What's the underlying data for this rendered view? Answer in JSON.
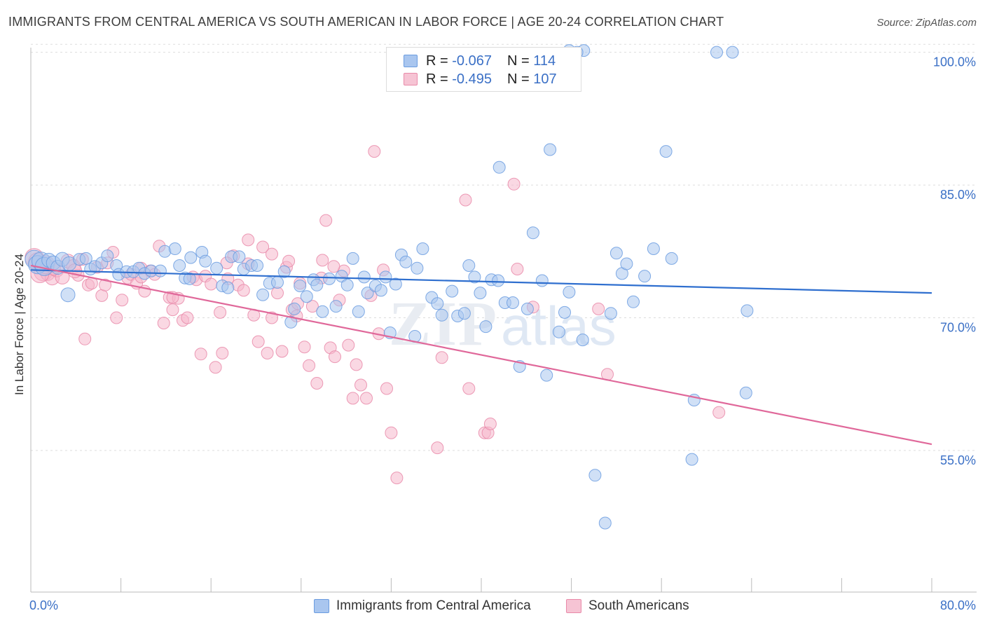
{
  "title": "IMMIGRANTS FROM CENTRAL AMERICA VS SOUTH AMERICAN IN LABOR FORCE | AGE 20-24 CORRELATION CHART",
  "source": "Source: ZipAtlas.com",
  "watermark": {
    "zip": "ZIP",
    "atlas": "atlas"
  },
  "legend": {
    "series1": {
      "r_label": "R =",
      "r_value": "-0.067",
      "n_label": "N =",
      "n_value": "114"
    },
    "series2": {
      "r_label": "R =",
      "r_value": "-0.495",
      "n_label": "N =",
      "n_value": "107"
    }
  },
  "colors": {
    "blue_fill": "#a9c6ef",
    "blue_stroke": "#6b9ce0",
    "blue_line": "#2f6fcf",
    "pink_fill": "#f6b8cc",
    "pink_stroke": "#e98aa9",
    "pink_line": "#e0689a",
    "tick_text": "#3b70c6",
    "grid": "#dddddd"
  },
  "chart_data": {
    "type": "scatter",
    "title": "IMMIGRANTS FROM CENTRAL AMERICA VS SOUTH AMERICAN IN LABOR FORCE | AGE 20-24 CORRELATION CHART",
    "xlabel": "",
    "ylabel": "In Labor Force | Age 20-24",
    "xlim": [
      0,
      80
    ],
    "ylim": [
      39,
      101
    ],
    "x_tick_labels": [
      "0.0%",
      "80.0%"
    ],
    "y_ticks": [
      55,
      70,
      85,
      100
    ],
    "y_tick_labels": [
      "55.0%",
      "70.0%",
      "85.0%",
      "100.0%"
    ],
    "series": [
      {
        "name": "Immigrants from Central America",
        "color": "#6b9ce0",
        "trend": {
          "x": [
            0,
            80
          ],
          "y": [
            75.4,
            72.8
          ]
        },
        "points": [
          [
            0.3,
            76.6
          ],
          [
            0.6,
            76.0
          ],
          [
            0.9,
            76.4
          ],
          [
            1.2,
            75.8
          ],
          [
            1.6,
            76.5
          ],
          [
            2.0,
            76.2
          ],
          [
            2.4,
            75.7
          ],
          [
            2.8,
            76.6
          ],
          [
            3.4,
            76.1
          ],
          [
            3.3,
            72.6
          ],
          [
            4.3,
            76.6
          ],
          [
            4.9,
            76.7
          ],
          [
            5.3,
            75.5
          ],
          [
            5.7,
            75.8
          ],
          [
            6.3,
            76.2
          ],
          [
            6.8,
            77.0
          ],
          [
            7.6,
            75.9
          ],
          [
            7.8,
            74.9
          ],
          [
            8.5,
            75.2
          ],
          [
            9.1,
            75.2
          ],
          [
            9.6,
            75.6
          ],
          [
            10.1,
            75.0
          ],
          [
            10.7,
            75.3
          ],
          [
            11.5,
            75.3
          ],
          [
            11.9,
            77.5
          ],
          [
            12.8,
            77.8
          ],
          [
            13.2,
            75.9
          ],
          [
            13.7,
            74.5
          ],
          [
            14.2,
            76.8
          ],
          [
            14.1,
            74.4
          ],
          [
            15.2,
            77.4
          ],
          [
            15.5,
            76.4
          ],
          [
            16.5,
            75.6
          ],
          [
            17.0,
            73.6
          ],
          [
            17.5,
            73.4
          ],
          [
            17.8,
            76.9
          ],
          [
            18.5,
            76.9
          ],
          [
            18.9,
            75.5
          ],
          [
            19.6,
            75.9
          ],
          [
            20.1,
            75.9
          ],
          [
            20.6,
            72.6
          ],
          [
            21.2,
            73.9
          ],
          [
            21.9,
            74.0
          ],
          [
            22.5,
            75.2
          ],
          [
            23.1,
            69.5
          ],
          [
            23.4,
            71.0
          ],
          [
            23.9,
            73.6
          ],
          [
            24.5,
            72.4
          ],
          [
            25.1,
            74.3
          ],
          [
            25.4,
            73.7
          ],
          [
            25.9,
            70.7
          ],
          [
            26.5,
            74.4
          ],
          [
            27.1,
            71.3
          ],
          [
            27.6,
            74.7
          ],
          [
            28.1,
            73.7
          ],
          [
            28.6,
            76.7
          ],
          [
            29.1,
            70.7
          ],
          [
            29.6,
            74.6
          ],
          [
            29.9,
            72.8
          ],
          [
            30.6,
            73.6
          ],
          [
            31.1,
            73.1
          ],
          [
            31.5,
            74.6
          ],
          [
            31.9,
            68.3
          ],
          [
            32.4,
            73.8
          ],
          [
            32.9,
            77.1
          ],
          [
            33.3,
            76.3
          ],
          [
            34.1,
            67.9
          ],
          [
            34.3,
            75.6
          ],
          [
            34.8,
            77.8
          ],
          [
            35.6,
            72.3
          ],
          [
            36.1,
            71.6
          ],
          [
            36.5,
            70.3
          ],
          [
            37.4,
            73.0
          ],
          [
            37.9,
            70.2
          ],
          [
            38.5,
            70.5
          ],
          [
            38.9,
            75.9
          ],
          [
            39.4,
            74.6
          ],
          [
            39.9,
            72.8
          ],
          [
            40.4,
            69.0
          ],
          [
            40.9,
            74.3
          ],
          [
            41.5,
            74.2
          ],
          [
            41.6,
            87.0
          ],
          [
            42.1,
            71.7
          ],
          [
            42.8,
            71.7
          ],
          [
            43.4,
            64.5
          ],
          [
            44.1,
            71.0
          ],
          [
            44.6,
            79.6
          ],
          [
            45.4,
            74.2
          ],
          [
            45.8,
            63.5
          ],
          [
            46.1,
            89.0
          ],
          [
            46.9,
            68.4
          ],
          [
            47.4,
            70.6
          ],
          [
            47.8,
            72.9
          ],
          [
            49.0,
            67.5
          ],
          [
            50.1,
            52.2
          ],
          [
            51.0,
            46.8
          ],
          [
            51.5,
            70.5
          ],
          [
            52.0,
            77.3
          ],
          [
            52.5,
            75.0
          ],
          [
            52.9,
            76.1
          ],
          [
            53.5,
            71.8
          ],
          [
            54.5,
            74.7
          ],
          [
            55.3,
            77.8
          ],
          [
            56.4,
            88.8
          ],
          [
            56.9,
            76.7
          ],
          [
            58.7,
            54.0
          ],
          [
            58.9,
            60.7
          ],
          [
            60.9,
            100.0
          ],
          [
            62.3,
            100.0
          ],
          [
            63.5,
            61.5
          ],
          [
            63.6,
            70.8
          ],
          [
            47.8,
            100.2
          ],
          [
            49.1,
            100.2
          ],
          [
            48.5,
            100.0
          ]
        ]
      },
      {
        "name": "South Americans",
        "color": "#e98aa9",
        "trend": {
          "x": [
            0,
            80
          ],
          "y": [
            75.9,
            55.7
          ]
        },
        "points": [
          [
            0.3,
            76.8
          ],
          [
            0.6,
            76.3
          ],
          [
            1.1,
            75.2
          ],
          [
            1.5,
            75.0
          ],
          [
            1.9,
            74.5
          ],
          [
            2.3,
            75.4
          ],
          [
            2.8,
            74.6
          ],
          [
            3.3,
            76.4
          ],
          [
            3.8,
            75.8
          ],
          [
            4.2,
            74.8
          ],
          [
            4.8,
            67.6
          ],
          [
            5.1,
            73.7
          ],
          [
            5.4,
            73.9
          ],
          [
            5.9,
            75.7
          ],
          [
            6.3,
            72.5
          ],
          [
            6.6,
            73.7
          ],
          [
            7.3,
            77.4
          ],
          [
            7.6,
            70.0
          ],
          [
            8.1,
            72.0
          ],
          [
            8.6,
            74.5
          ],
          [
            8.9,
            74.9
          ],
          [
            9.4,
            73.9
          ],
          [
            9.8,
            75.6
          ],
          [
            10.1,
            73.0
          ],
          [
            10.6,
            75.3
          ],
          [
            11.0,
            74.9
          ],
          [
            11.4,
            78.1
          ],
          [
            11.8,
            69.4
          ],
          [
            12.3,
            72.3
          ],
          [
            12.6,
            70.9
          ],
          [
            13.1,
            72.2
          ],
          [
            13.5,
            69.7
          ],
          [
            13.9,
            70.0
          ],
          [
            14.4,
            74.6
          ],
          [
            14.7,
            74.3
          ],
          [
            15.1,
            65.9
          ],
          [
            15.5,
            74.7
          ],
          [
            16.0,
            73.8
          ],
          [
            16.4,
            64.4
          ],
          [
            16.8,
            70.6
          ],
          [
            17.0,
            66.0
          ],
          [
            17.5,
            74.4
          ],
          [
            18.0,
            77.0
          ],
          [
            18.4,
            73.7
          ],
          [
            18.9,
            73.1
          ],
          [
            19.3,
            78.8
          ],
          [
            19.8,
            70.3
          ],
          [
            20.2,
            67.3
          ],
          [
            20.6,
            78.0
          ],
          [
            21.0,
            66.0
          ],
          [
            21.4,
            70.0
          ],
          [
            21.9,
            72.8
          ],
          [
            22.3,
            66.2
          ],
          [
            22.7,
            75.7
          ],
          [
            23.2,
            70.9
          ],
          [
            23.6,
            70.2
          ],
          [
            23.9,
            73.9
          ],
          [
            24.3,
            66.7
          ],
          [
            24.7,
            64.6
          ],
          [
            25.0,
            71.3
          ],
          [
            25.4,
            62.6
          ],
          [
            25.8,
            74.5
          ],
          [
            26.2,
            81.0
          ],
          [
            26.6,
            66.6
          ],
          [
            27.0,
            65.6
          ],
          [
            27.4,
            72.0
          ],
          [
            27.8,
            75.3
          ],
          [
            28.2,
            66.9
          ],
          [
            28.6,
            60.9
          ],
          [
            28.9,
            64.7
          ],
          [
            29.3,
            62.4
          ],
          [
            29.8,
            60.9
          ],
          [
            30.2,
            72.5
          ],
          [
            30.5,
            88.8
          ],
          [
            30.9,
            68.2
          ],
          [
            31.3,
            75.4
          ],
          [
            31.6,
            62.0
          ],
          [
            32.0,
            57.0
          ],
          [
            32.5,
            51.9
          ],
          [
            36.1,
            55.3
          ],
          [
            36.5,
            65.5
          ],
          [
            38.6,
            83.3
          ],
          [
            38.9,
            62.0
          ],
          [
            40.3,
            57.0
          ],
          [
            40.6,
            57.0
          ],
          [
            40.8,
            58.0
          ],
          [
            42.9,
            85.1
          ],
          [
            43.2,
            75.5
          ],
          [
            44.6,
            71.2
          ],
          [
            50.4,
            71.0
          ],
          [
            51.2,
            63.6
          ],
          [
            61.1,
            59.3
          ],
          [
            12.6,
            72.3
          ],
          [
            19.3,
            76.1
          ],
          [
            21.4,
            77.2
          ],
          [
            22.9,
            76.4
          ],
          [
            23.7,
            71.6
          ],
          [
            25.9,
            76.5
          ],
          [
            26.9,
            75.8
          ],
          [
            17.4,
            76.2
          ],
          [
            3.9,
            75.3
          ],
          [
            9.8,
            74.6
          ],
          [
            2.0,
            75.6
          ],
          [
            0.8,
            75.0
          ],
          [
            1.3,
            76.0
          ],
          [
            4.6,
            76.6
          ],
          [
            6.8,
            76.2
          ]
        ]
      }
    ]
  },
  "bottom_legend": [
    {
      "label": "Immigrants from Central America"
    },
    {
      "label": "South Americans"
    }
  ]
}
